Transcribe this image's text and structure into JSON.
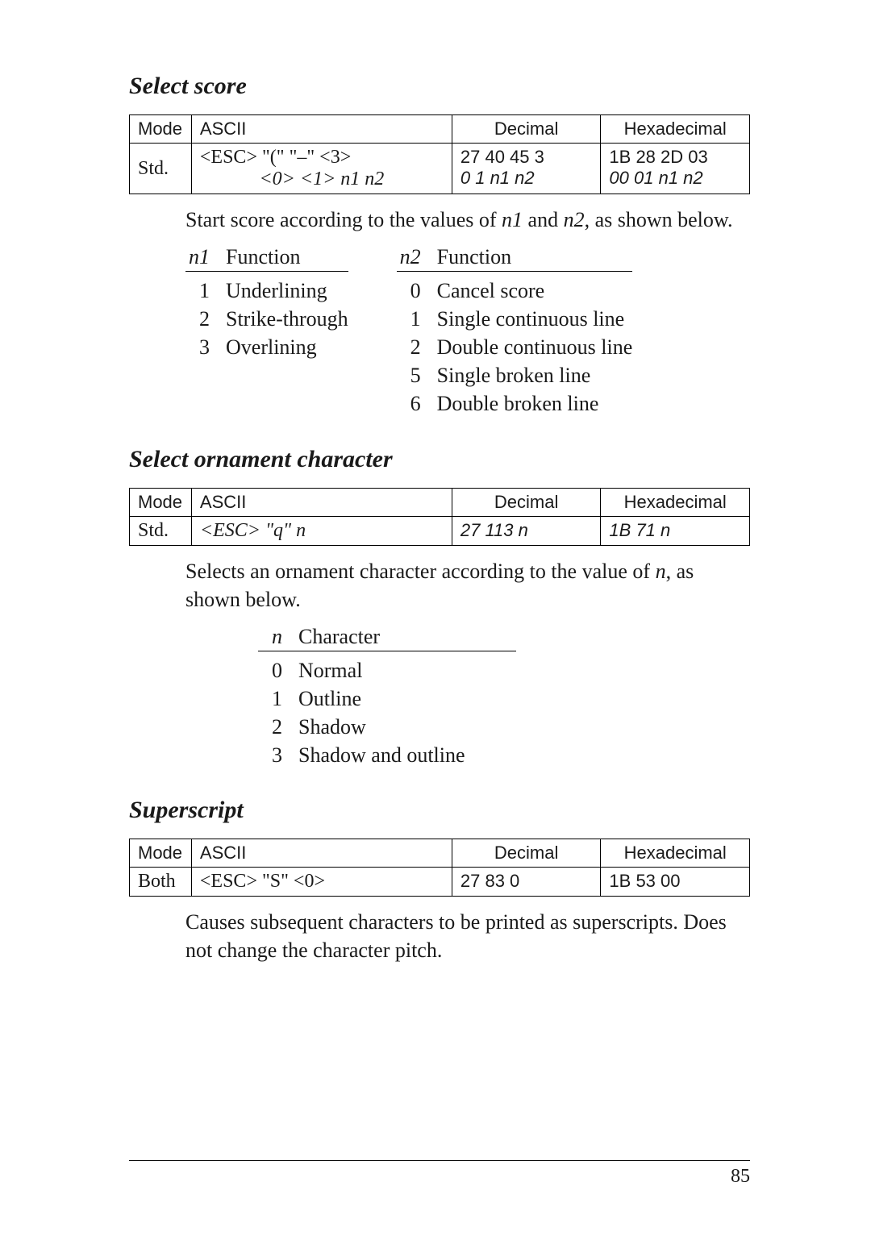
{
  "page_number": "85",
  "section1": {
    "title": "Select score",
    "table": {
      "headers": [
        "Mode",
        "ASCII",
        "Decimal",
        "Hexadecimal"
      ],
      "rows": [
        {
          "mode": "Std.",
          "ascii_l1": "<ESC>  \"(\"  \"–\"  <3>",
          "ascii_l2": "<0>   <1>   n1    n2",
          "dec_l1": "27   40   45    3",
          "dec_l2": " 0    1   n1   n2",
          "hex_l1": "1B   28   2D   03",
          "hex_l2": "00   01   n1   n2"
        }
      ]
    },
    "desc": "Start score according to the values of n1 and n2, as shown below.",
    "n1": {
      "var": "n1",
      "header": "Function",
      "items": [
        {
          "i": "1",
          "t": "Underlining"
        },
        {
          "i": "2",
          "t": "Strike-through"
        },
        {
          "i": "3",
          "t": "Overlining"
        }
      ]
    },
    "n2": {
      "var": "n2",
      "header": "Function",
      "items": [
        {
          "i": "0",
          "t": "Cancel score"
        },
        {
          "i": "1",
          "t": "Single continuous line"
        },
        {
          "i": "2",
          "t": "Double continuous line"
        },
        {
          "i": "5",
          "t": "Single broken line"
        },
        {
          "i": "6",
          "t": "Double broken line"
        }
      ]
    }
  },
  "section2": {
    "title": "Select ornament character",
    "table": {
      "headers": [
        "Mode",
        "ASCII",
        "Decimal",
        "Hexadecimal"
      ],
      "row": {
        "mode": "Std.",
        "ascii": "<ESC>   \"q\"    n",
        "dec": "27  113    n",
        "hex": "1B   71    n"
      }
    },
    "desc": "Selects an ornament character according to the value of n, as shown below.",
    "n": {
      "var": "n",
      "header": "Character",
      "items": [
        {
          "i": "0",
          "t": "Normal"
        },
        {
          "i": "1",
          "t": "Outline"
        },
        {
          "i": "2",
          "t": "Shadow"
        },
        {
          "i": "3",
          "t": "Shadow and outline"
        }
      ]
    }
  },
  "section3": {
    "title": "Superscript",
    "table": {
      "headers": [
        "Mode",
        "ASCII",
        "Decimal",
        "Hexadecimal"
      ],
      "row": {
        "mode": "Both",
        "ascii": "<ESC>   \"S\"   <0>",
        "dec": "27    83     0",
        "hex": "1B    53    00"
      }
    },
    "desc": "Causes subsequent characters to be printed as superscripts. Does not change the character pitch."
  }
}
